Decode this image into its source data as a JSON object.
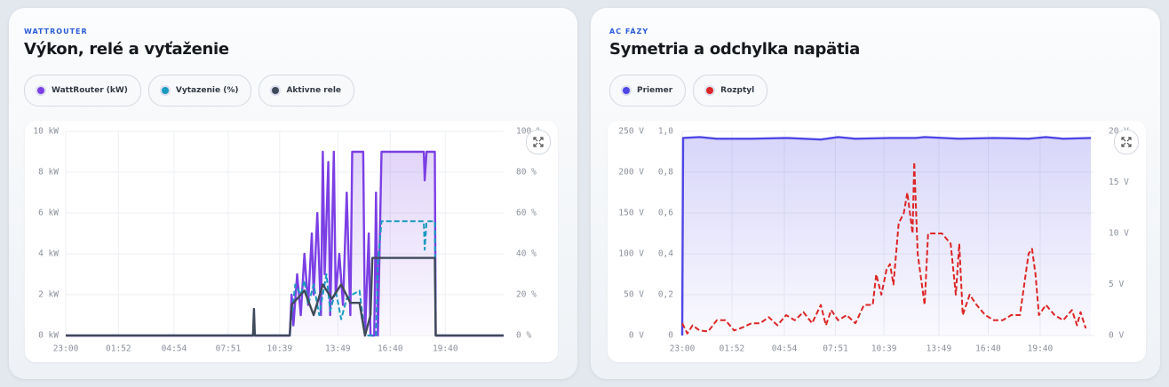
{
  "chart_data": [
    {
      "type": "line",
      "kicker": "WATTROUTER",
      "title": "Výkon, relé a vyťaženie",
      "xlim": [
        0,
        23.85
      ],
      "xticks": [
        {
          "value": 0,
          "label": "23:00"
        },
        {
          "value": 2.87,
          "label": "01:52"
        },
        {
          "value": 5.9,
          "label": "04:54"
        },
        {
          "value": 8.85,
          "label": "07:51"
        },
        {
          "value": 11.65,
          "label": "10:39"
        },
        {
          "value": 14.82,
          "label": "13:49"
        },
        {
          "value": 17.67,
          "label": "16:40"
        },
        {
          "value": 20.67,
          "label": "19:40"
        }
      ],
      "ylim": [
        0,
        10
      ],
      "yticks": [
        {
          "value": 0,
          "label": "0 kW"
        },
        {
          "value": 2,
          "label": "2 kW"
        },
        {
          "value": 4,
          "label": "4 kW"
        },
        {
          "value": 6,
          "label": "6 kW"
        },
        {
          "value": 8,
          "label": "8 kW"
        },
        {
          "value": 10,
          "label": "10 kW"
        }
      ],
      "y2lim": [
        0,
        100
      ],
      "y2ticks": [
        {
          "value": 0,
          "label": "0 %"
        },
        {
          "value": 20,
          "label": "20 %"
        },
        {
          "value": 40,
          "label": "40 %"
        },
        {
          "value": 60,
          "label": "60 %"
        },
        {
          "value": 80,
          "label": "80 %"
        },
        {
          "value": 100,
          "label": "100 %"
        }
      ],
      "grid": true,
      "series": [
        {
          "name": "WattRouter (kW)",
          "color": "#7b3fe4",
          "fill": true,
          "x": [
            0,
            12.2,
            12.3,
            12.4,
            12.6,
            12.8,
            13.0,
            13.2,
            13.4,
            13.5,
            13.7,
            13.9,
            14.0,
            14.1,
            14.3,
            14.4,
            14.6,
            14.7,
            14.9,
            15.1,
            15.3,
            15.5,
            15.6,
            15.7,
            16.2,
            16.3,
            16.5,
            16.6,
            16.8,
            16.9,
            17.0,
            17.2,
            19.5,
            19.55,
            19.65,
            20.1,
            20.15,
            23.85
          ],
          "values": [
            0,
            0,
            2,
            0.5,
            3,
            1,
            4,
            1.5,
            5,
            2,
            6,
            1,
            9,
            3,
            8.5,
            1,
            9,
            2,
            4,
            1.5,
            7,
            1,
            9,
            9,
            9,
            0,
            5,
            0,
            0,
            7,
            0,
            9,
            9,
            7.6,
            9,
            9,
            0,
            0
          ]
        },
        {
          "name": "Vytazenie (%)",
          "color": "#1a9bc0",
          "axis": "y2",
          "dash": true,
          "x": [
            0,
            12.2,
            12.3,
            12.5,
            12.8,
            13.0,
            13.2,
            13.5,
            13.8,
            14.0,
            14.2,
            14.4,
            14.7,
            15.0,
            15.3,
            15.6,
            16.0,
            16.3,
            16.9,
            17.0,
            17.2,
            19.5,
            19.55,
            19.65,
            20.1,
            20.15,
            23.85
          ],
          "values": [
            0,
            0,
            10,
            25,
            20,
            27,
            15,
            25,
            10,
            20,
            30,
            12,
            22,
            8,
            18,
            20,
            22,
            0,
            0,
            35,
            56,
            56,
            42,
            56,
            56,
            0,
            0
          ]
        },
        {
          "name": "Aktivne rele",
          "color": "#3f4a5a",
          "x": [
            0,
            10.2,
            10.25,
            10.3,
            12.2,
            12.3,
            13.0,
            13.5,
            14.0,
            14.5,
            15.0,
            15.5,
            16.0,
            16.3,
            16.6,
            16.7,
            20.1,
            20.15,
            23.85
          ],
          "values": [
            0,
            0,
            1.3,
            0,
            0,
            1.5,
            2.2,
            1,
            2.5,
            1.8,
            2.5,
            1.6,
            1.6,
            0,
            1,
            3.8,
            3.8,
            0,
            0
          ]
        }
      ]
    },
    {
      "type": "line",
      "kicker": "AC FÁZY",
      "title": "Symetria a odchylka napätia",
      "xlim": [
        0,
        23.8
      ],
      "xticks": [
        {
          "value": 0,
          "label": "23:00"
        },
        {
          "value": 2.87,
          "label": "01:52"
        },
        {
          "value": 5.9,
          "label": "04:54"
        },
        {
          "value": 8.85,
          "label": "07:51"
        },
        {
          "value": 11.65,
          "label": "10:39"
        },
        {
          "value": 14.82,
          "label": "13:49"
        },
        {
          "value": 17.67,
          "label": "16:40"
        },
        {
          "value": 20.67,
          "label": "19:40"
        }
      ],
      "ylim": [
        0,
        250
      ],
      "yticks": [
        {
          "value": 0,
          "label": "0 V"
        },
        {
          "value": 50,
          "label": "50 V"
        },
        {
          "value": 100,
          "label": "100 V"
        },
        {
          "value": 150,
          "label": "150 V"
        },
        {
          "value": 200,
          "label": "200 V"
        },
        {
          "value": 250,
          "label": "250 V"
        }
      ],
      "y3lim": [
        0,
        1
      ],
      "y3ticks": [
        0,
        {
          "value": 0.2,
          "label": "0,2"
        },
        {
          "value": 0.4,
          "label": "0,4"
        },
        {
          "value": 0.6,
          "label": "0,6"
        },
        {
          "value": 0.8,
          "label": "0,8"
        },
        {
          "value": 1,
          "label": "1,0"
        }
      ],
      "y2lim": [
        0,
        20
      ],
      "y2ticks": [
        {
          "value": 0,
          "label": "0 V"
        },
        {
          "value": 5,
          "label": "5 V"
        },
        {
          "value": 10,
          "label": "10 V"
        },
        {
          "value": 15,
          "label": "15 V"
        },
        {
          "value": 20,
          "label": "20 V"
        }
      ],
      "grid": true,
      "series": [
        {
          "name": "Priemer",
          "color": "#4f46e5",
          "fill": true,
          "x": [
            0,
            0.05,
            1,
            2,
            4,
            6,
            8,
            9,
            10,
            12,
            13.5,
            14,
            16,
            18,
            20,
            21,
            22,
            23.6
          ],
          "values": [
            0,
            242,
            243,
            241,
            241,
            242,
            240,
            243,
            241,
            242,
            242,
            243,
            241,
            242,
            241,
            243,
            241,
            242
          ]
        },
        {
          "name": "Rozptyl",
          "color": "#dc2626",
          "axis": "y2",
          "dash": true,
          "x": [
            0,
            0.3,
            0.6,
            1,
            1.5,
            2,
            2.5,
            3,
            3.5,
            4,
            4.5,
            5,
            5.5,
            6,
            6.5,
            7,
            7.5,
            8,
            8.3,
            8.6,
            9,
            9.5,
            10,
            10.5,
            11,
            11.2,
            11.5,
            11.8,
            12,
            12.2,
            12.5,
            12.8,
            13,
            13.3,
            13.4,
            13.6,
            14,
            14.2,
            14.6,
            15,
            15.5,
            15.8,
            16,
            16.2,
            16.6,
            17,
            17.5,
            18,
            18.5,
            19,
            19.5,
            20,
            20.2,
            20.4,
            20.6,
            21,
            21.5,
            22,
            22.5,
            22.8,
            23,
            23.3
          ],
          "values": [
            1.2,
            0.2,
            1,
            0.5,
            0.4,
            1.5,
            1.5,
            0.5,
            0.8,
            1.2,
            1.2,
            1.8,
            1,
            2,
            1.5,
            2.3,
            1.2,
            3,
            1,
            2.5,
            1.5,
            2,
            1.2,
            3,
            3,
            6,
            4,
            6.5,
            7,
            5,
            11,
            12,
            14,
            10,
            17,
            8,
            3,
            10,
            10,
            10,
            9,
            4,
            9,
            2,
            4,
            3,
            2,
            1.5,
            1.5,
            2,
            2,
            8,
            8.5,
            6,
            2,
            3,
            2,
            1.5,
            2.5,
            1,
            2.3,
            0.7
          ]
        }
      ]
    }
  ]
}
